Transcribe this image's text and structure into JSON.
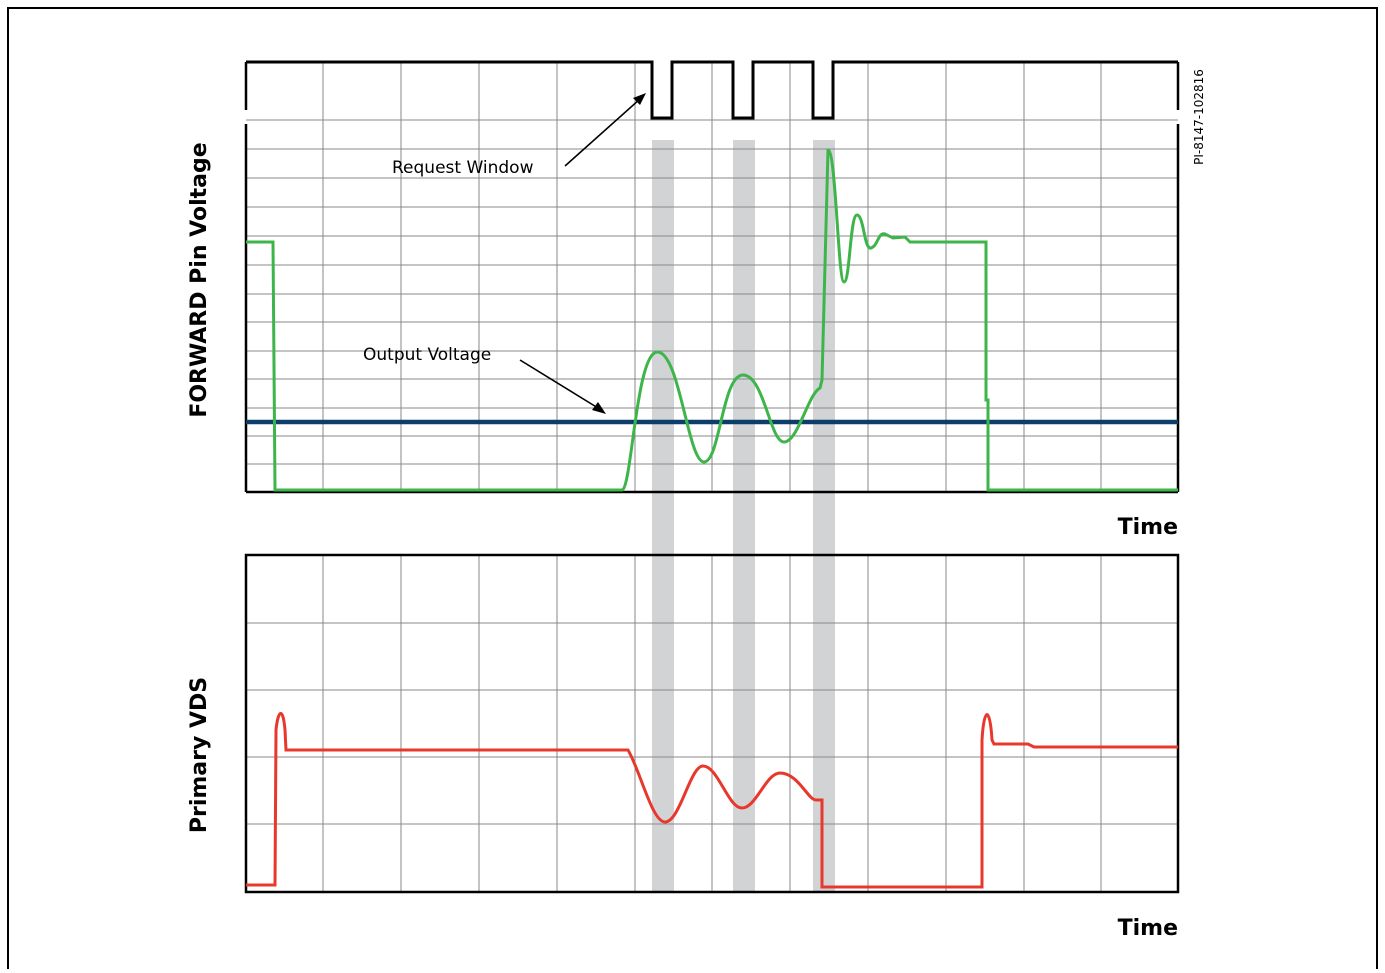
{
  "figure": {
    "id_code": "PI-8147-102816",
    "top_panel": {
      "ylabel": "FORWARD Pin Voltage",
      "xlabel": "Time"
    },
    "bottom_panel": {
      "ylabel": "Primary VDS",
      "xlabel": "Time"
    },
    "annotations": {
      "request_window": "Request Window",
      "output_voltage": "Output Voltage"
    }
  },
  "colors": {
    "forward_trace": "#3db54a",
    "vds_trace": "#e8382d",
    "output_voltage_line": "#0d3d6b",
    "request_window_band": "#d2d3d5",
    "grid": "#888888",
    "frame": "#000000"
  }
}
